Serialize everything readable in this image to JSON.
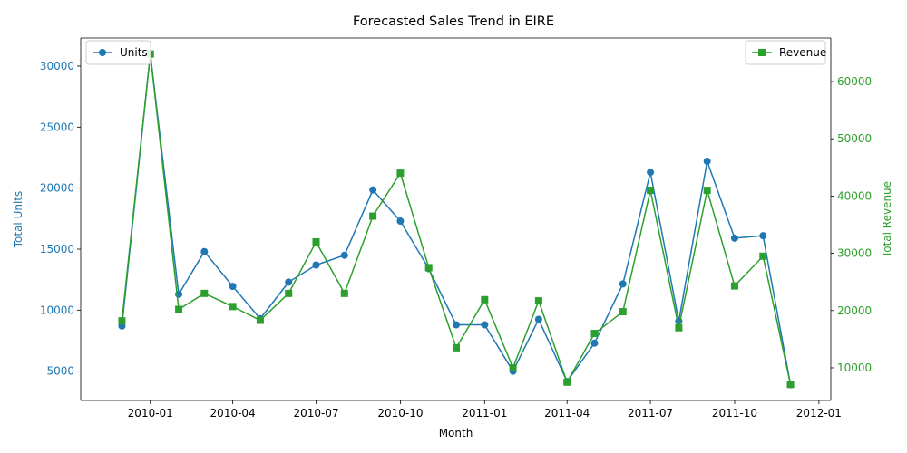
{
  "chart_data": {
    "type": "line",
    "title": "Forecasted Sales Trend in EIRE",
    "xlabel": "Month",
    "x": [
      "2009-12-01",
      "2010-01-01",
      "2010-02-01",
      "2010-03-01",
      "2010-04-01",
      "2010-05-01",
      "2010-06-01",
      "2010-07-01",
      "2010-08-01",
      "2010-09-01",
      "2010-10-01",
      "2010-11-01",
      "2010-12-01",
      "2011-01-01",
      "2011-02-01",
      "2011-03-01",
      "2011-04-01",
      "2011-05-01",
      "2011-06-01",
      "2011-07-01",
      "2011-08-01",
      "2011-09-01",
      "2011-10-01",
      "2011-11-01",
      "2011-12-01"
    ],
    "xlim": [
      "2009-10-17",
      "2012-01-14"
    ],
    "x_ticks": [
      "2010-01-01",
      "2010-04-01",
      "2010-07-01",
      "2010-10-01",
      "2011-01-01",
      "2011-04-01",
      "2011-07-01",
      "2011-10-01",
      "2012-01-01"
    ],
    "x_tick_labels": [
      "2010-01",
      "2010-04",
      "2010-07",
      "2010-10",
      "2011-01",
      "2011-04",
      "2011-07",
      "2011-10",
      "2012-01"
    ],
    "y_left": {
      "label": "Total Units",
      "color": "#1f77b4",
      "lim": [
        2600,
        32300
      ],
      "ticks": [
        5000,
        10000,
        15000,
        20000,
        25000,
        30000
      ],
      "tick_labels": [
        "5000",
        "10000",
        "15000",
        "20000",
        "25000",
        "30000"
      ]
    },
    "y_right": {
      "label": "Total Revenue",
      "color": "#2ca02c",
      "lim": [
        4300,
        67600
      ],
      "ticks": [
        10000,
        20000,
        30000,
        40000,
        50000,
        60000
      ],
      "tick_labels": [
        "10000",
        "20000",
        "30000",
        "40000",
        "50000",
        "60000"
      ]
    },
    "series": [
      {
        "name": "Units",
        "axis": "left",
        "color": "#1f77b4",
        "marker": "circle",
        "legend": "upper-left",
        "values": [
          8700,
          31000,
          11300,
          14800,
          11950,
          9300,
          12300,
          13700,
          14500,
          19850,
          17300,
          13400,
          8800,
          8800,
          5000,
          9250,
          4150,
          7300,
          12150,
          21300,
          9100,
          22200,
          15900,
          16100,
          3900
        ]
      },
      {
        "name": "Revenue",
        "axis": "right",
        "color": "#2ca02c",
        "marker": "square",
        "legend": "upper-right",
        "values": [
          18200,
          64800,
          20200,
          23000,
          20700,
          18300,
          23000,
          32000,
          23000,
          36500,
          44000,
          27500,
          13500,
          21900,
          10000,
          21700,
          7500,
          16000,
          19800,
          41000,
          17000,
          41000,
          24300,
          29500,
          7100
        ]
      }
    ]
  }
}
